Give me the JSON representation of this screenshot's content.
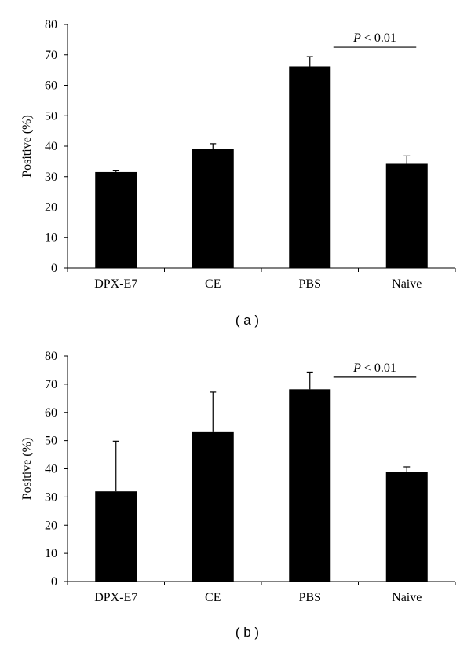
{
  "figure": {
    "panels": [
      {
        "label": "( a )"
      },
      {
        "label": "( b )"
      }
    ]
  },
  "chart_data": [
    {
      "type": "bar",
      "panel": "a",
      "ylabel": "Positive (%)",
      "xlabel": "",
      "ylim": [
        0,
        80
      ],
      "yticks": [
        0,
        10,
        20,
        30,
        40,
        50,
        60,
        70,
        80
      ],
      "categories": [
        "DPX-E7",
        "CE",
        "PBS",
        "Naive"
      ],
      "values": [
        31.5,
        39.2,
        66.2,
        34.2
      ],
      "error_upper": [
        0.6,
        1.6,
        3.2,
        2.6
      ],
      "bar_color": "#000000",
      "annotation": {
        "text": "P < 0.01",
        "italic_prefix": "P",
        "suffix": " < 0.01",
        "from": "PBS",
        "to": "Naive",
        "y": 72.5
      }
    },
    {
      "type": "bar",
      "panel": "b",
      "ylabel": "Positive (%)",
      "xlabel": "",
      "ylim": [
        0,
        80
      ],
      "yticks": [
        0,
        10,
        20,
        30,
        40,
        50,
        60,
        70,
        80
      ],
      "categories": [
        "DPX-E7",
        "CE",
        "PBS",
        "Naive"
      ],
      "values": [
        32.0,
        53.0,
        68.2,
        38.8
      ],
      "error_upper": [
        17.8,
        14.2,
        6.1,
        1.9
      ],
      "bar_color": "#000000",
      "annotation": {
        "text": "P < 0.01",
        "italic_prefix": "P",
        "suffix": " < 0.01",
        "from": "PBS",
        "to": "Naive",
        "y": 72.5
      }
    }
  ]
}
